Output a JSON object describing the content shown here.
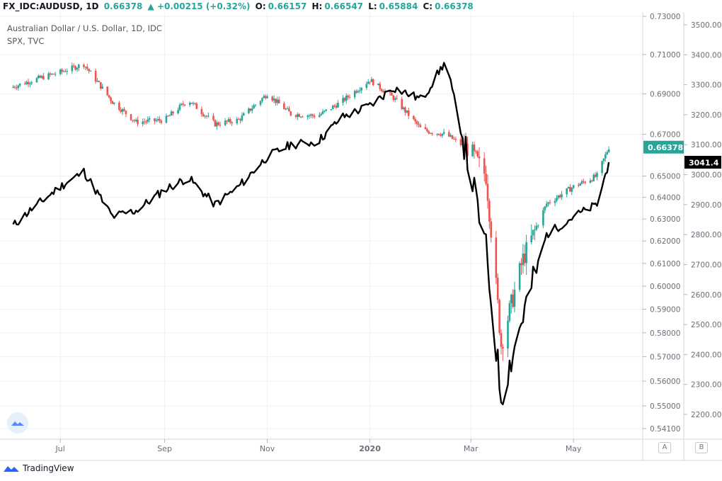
{
  "header": {
    "symbol": "FX_IDC:AUDUSD, 1D",
    "last": "0.66378",
    "change": "▲ +0.00215 (+0.32%)",
    "o_label": "O:",
    "o_value": "0.66157",
    "h_label": "H:",
    "h_value": "0.66547",
    "l_label": "L:",
    "l_value": "0.65884",
    "c_label": "C:",
    "c_value": "0.66378"
  },
  "legend": {
    "main_series": "Australian Dollar / U.S. Dollar, 1D, IDC",
    "compare_series": "SPX, TVC"
  },
  "footer": {
    "brand": "TradingView"
  },
  "scale_buttons": {
    "a": "A",
    "b": "B"
  },
  "colors": {
    "up": "#26a69a",
    "down": "#ef5350",
    "spx": "#000000",
    "grid": "#eef0f3",
    "label_bg_audusd": "#26a69a",
    "label_bg_spx": "#000000"
  },
  "chart_data": {
    "type": "line",
    "x_tick_labels": [
      "Jul",
      "Sep",
      "Nov",
      "2020",
      "Mar",
      "May"
    ],
    "axes": {
      "left_price_scale": {
        "labels": [
          "0.73000",
          "0.71000",
          "0.69000",
          "0.67000",
          "0.65000",
          "0.64000",
          "0.63000",
          "0.62000",
          "0.61000",
          "0.60000",
          "0.59000",
          "0.58000",
          "0.57000",
          "0.56000",
          "0.55000",
          "0.54100"
        ],
        "range": [
          0.541,
          0.73
        ],
        "scale": "log"
      },
      "right_price_scale": {
        "labels": [
          "3500.00",
          "3400.00",
          "3300.00",
          "3200.00",
          "3100.00",
          "3000.00",
          "2900.00",
          "2800.00",
          "2700.00",
          "2600.00",
          "2500.00",
          "2400.00",
          "2300.00",
          "2200.00"
        ],
        "range": [
          2170,
          3500
        ]
      }
    },
    "last_value_labels": {
      "audusd": "0.66378",
      "spx": "3041.4"
    },
    "series": [
      {
        "name": "FX_IDC:AUDUSD",
        "kind": "candlestick",
        "x": [
          "2019-06-01",
          "2019-06-15",
          "2019-07-01",
          "2019-07-15",
          "2019-08-01",
          "2019-08-15",
          "2019-09-01",
          "2019-09-15",
          "2019-10-01",
          "2019-10-15",
          "2019-11-01",
          "2019-11-15",
          "2019-12-01",
          "2019-12-15",
          "2020-01-01",
          "2020-01-15",
          "2020-02-01",
          "2020-02-15",
          "2020-03-01",
          "2020-03-10",
          "2020-03-19",
          "2020-04-01",
          "2020-04-15",
          "2020-05-01",
          "2020-05-15",
          "2020-05-22"
        ],
        "close": [
          0.693,
          0.697,
          0.701,
          0.705,
          0.686,
          0.676,
          0.677,
          0.687,
          0.675,
          0.677,
          0.69,
          0.68,
          0.679,
          0.686,
          0.697,
          0.688,
          0.672,
          0.67,
          0.662,
          0.65,
          0.575,
          0.612,
          0.637,
          0.645,
          0.65,
          0.66378
        ]
      },
      {
        "name": "SPX",
        "kind": "line",
        "x": [
          "2019-06-01",
          "2019-06-15",
          "2019-07-01",
          "2019-07-15",
          "2019-08-01",
          "2019-08-15",
          "2019-09-01",
          "2019-09-15",
          "2019-10-01",
          "2019-10-15",
          "2019-11-01",
          "2019-11-15",
          "2019-12-01",
          "2019-12-15",
          "2020-01-01",
          "2020-01-15",
          "2020-02-01",
          "2020-02-15",
          "2020-03-01",
          "2020-03-10",
          "2020-03-19",
          "2020-04-01",
          "2020-04-15",
          "2020-05-01",
          "2020-05-15",
          "2020-05-22"
        ],
        "values": [
          2820,
          2890,
          2960,
          3010,
          2860,
          2880,
          2950,
          2990,
          2900,
          2960,
          3060,
          3100,
          3110,
          3190,
          3230,
          3290,
          3250,
          3380,
          3000,
          2750,
          2260,
          2530,
          2800,
          2860,
          2900,
          3041.4
        ]
      }
    ]
  }
}
